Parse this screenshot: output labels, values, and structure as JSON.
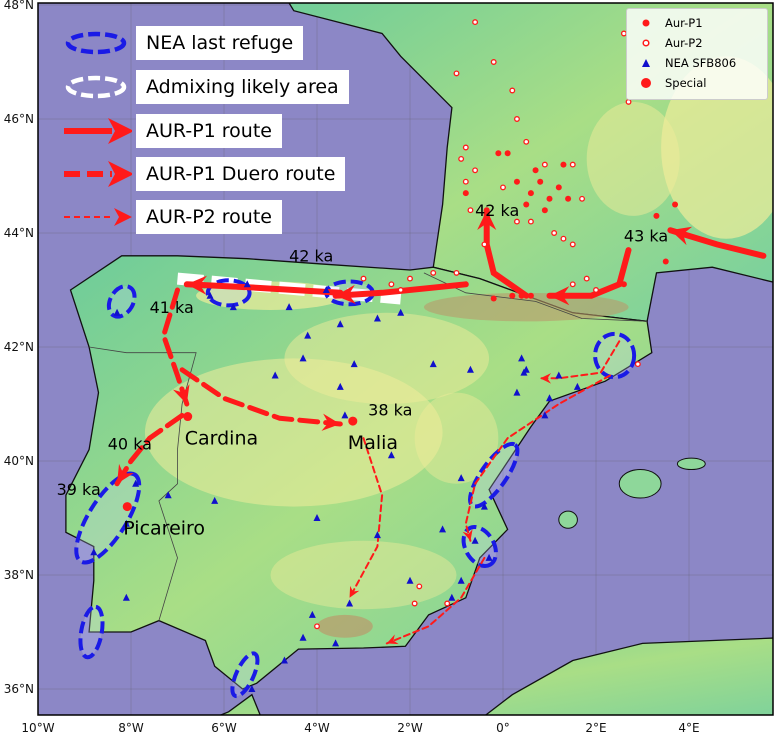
{
  "map": {
    "extent": {
      "lon": [
        -10,
        5.7
      ],
      "lat": [
        35.55,
        48
      ]
    },
    "colors": {
      "sea": "#8c87c6",
      "land_low": "#5cc4a0",
      "land_mid": "#a6dd84",
      "land_high": "#f0ec9a",
      "mountain": "#b99a6b",
      "route": "#ff1a1a",
      "refuge": "#1a1ae6",
      "nea": "#1010cc"
    },
    "x_ticks": [
      "10°W",
      "8°W",
      "6°W",
      "4°W",
      "2°W",
      "0°",
      "2°E",
      "4°E"
    ],
    "x_tick_values": [
      -10,
      -8,
      -6,
      -4,
      -2,
      0,
      2,
      4
    ],
    "y_ticks": [
      "48°N",
      "46°N",
      "44°N",
      "42°N",
      "40°N",
      "38°N",
      "36°N"
    ],
    "y_tick_values": [
      48,
      46,
      44,
      42,
      40,
      38,
      36
    ]
  },
  "route_legend": [
    {
      "label": "NEA last refuge",
      "symbol": "blue-dashed-ellipse"
    },
    {
      "label": "Admixing likely area",
      "symbol": "white-dashed-ellipse"
    },
    {
      "label": "AUR-P1 route",
      "symbol": "solid-red-arrow"
    },
    {
      "label": "AUR-P1 Duero route",
      "symbol": "dashed-thick-red-arrow"
    },
    {
      "label": "AUR-P2 route",
      "symbol": "dashed-thin-red-arrow"
    }
  ],
  "point_legend": [
    {
      "label": "Aur-P1",
      "symbol": "red-dot"
    },
    {
      "label": "Aur-P2",
      "symbol": "red-hollow-circle"
    },
    {
      "label": "NEA SFB806",
      "symbol": "blue-triangle"
    },
    {
      "label": "Special",
      "symbol": "large-red-dot"
    }
  ],
  "places": [
    {
      "name": "Cardina",
      "lon": -6.78,
      "lat": 40.78
    },
    {
      "name": "Malia",
      "lon": -3.23,
      "lat": 40.7
    },
    {
      "name": "Picareiro",
      "lon": -8.08,
      "lat": 39.2
    }
  ],
  "ages": [
    {
      "label": "42 ka",
      "lon": -0.6,
      "lat": 44.3
    },
    {
      "label": "43 ka",
      "lon": 2.6,
      "lat": 43.85
    },
    {
      "label": "42 ka",
      "lon": -4.6,
      "lat": 43.5
    },
    {
      "label": "41 ka",
      "lon": -7.6,
      "lat": 42.6
    },
    {
      "label": "38 ka",
      "lon": -2.9,
      "lat": 40.8
    },
    {
      "label": "40 ka",
      "lon": -8.5,
      "lat": 40.2
    },
    {
      "label": "39 ka",
      "lon": -9.6,
      "lat": 39.4
    }
  ],
  "aur_p1": [
    [
      0.8,
      44.9
    ],
    [
      0.6,
      44.7
    ],
    [
      1.0,
      44.6
    ],
    [
      0.9,
      44.4
    ],
    [
      0.5,
      44.5
    ],
    [
      1.2,
      44.8
    ],
    [
      0.3,
      44.9
    ],
    [
      0.1,
      45.4
    ],
    [
      -0.1,
      45.4
    ],
    [
      1.3,
      45.2
    ],
    [
      0.7,
      45.1
    ],
    [
      1.4,
      44.6
    ],
    [
      -0.8,
      44.7
    ],
    [
      0.4,
      42.9
    ],
    [
      0.6,
      42.9
    ],
    [
      0.2,
      42.9
    ],
    [
      -0.2,
      42.85
    ],
    [
      3.3,
      44.3
    ],
    [
      3.7,
      44.5
    ],
    [
      3.5,
      43.5
    ],
    [
      2.6,
      43.1
    ]
  ],
  "aur_p2": [
    [
      -0.8,
      45.5
    ],
    [
      -0.9,
      45.3
    ],
    [
      -0.6,
      45.1
    ],
    [
      -0.8,
      44.9
    ],
    [
      -0.7,
      44.4
    ],
    [
      0.0,
      44.8
    ],
    [
      0.3,
      44.2
    ],
    [
      0.6,
      44.2
    ],
    [
      1.1,
      44.0
    ],
    [
      1.3,
      43.9
    ],
    [
      1.5,
      43.8
    ],
    [
      0.5,
      45.6
    ],
    [
      0.3,
      46.0
    ],
    [
      0.2,
      46.5
    ],
    [
      1.7,
      44.6
    ],
    [
      0.9,
      45.2
    ],
    [
      1.5,
      45.2
    ],
    [
      -0.6,
      47.7
    ],
    [
      2.6,
      47.5
    ],
    [
      2.7,
      46.3
    ],
    [
      -0.4,
      43.8
    ],
    [
      -1.5,
      43.3
    ],
    [
      -2.0,
      43.2
    ],
    [
      -2.4,
      43.1
    ],
    [
      -3.0,
      43.2
    ],
    [
      -1.0,
      43.3
    ],
    [
      1.5,
      43.1
    ],
    [
      1.8,
      43.2
    ],
    [
      2.0,
      43.0
    ],
    [
      -0.2,
      47.0
    ],
    [
      -1.0,
      46.8
    ],
    [
      2.9,
      41.7
    ],
    [
      -2.2,
      43.0
    ],
    [
      -1.8,
      37.8
    ],
    [
      -4.0,
      37.1
    ],
    [
      -1.2,
      37.5
    ],
    [
      -1.9,
      37.5
    ]
  ],
  "nea": [
    [
      -8.3,
      42.6
    ],
    [
      -6.3,
      42.9
    ],
    [
      -5.8,
      42.7
    ],
    [
      -5.5,
      43.1
    ],
    [
      -4.6,
      42.7
    ],
    [
      -3.8,
      43.0
    ],
    [
      -3.5,
      42.4
    ],
    [
      -3.2,
      41.7
    ],
    [
      -4.2,
      42.2
    ],
    [
      -2.7,
      42.5
    ],
    [
      -2.2,
      42.6
    ],
    [
      -4.9,
      41.5
    ],
    [
      -4.3,
      41.8
    ],
    [
      -3.5,
      41.3
    ],
    [
      -3.4,
      40.8
    ],
    [
      -1.5,
      41.7
    ],
    [
      -0.7,
      41.6
    ],
    [
      0.4,
      41.8
    ],
    [
      0.5,
      41.6
    ],
    [
      0.45,
      41.55
    ],
    [
      0.3,
      41.2
    ],
    [
      1.2,
      41.5
    ],
    [
      1.0,
      41.1
    ],
    [
      -0.9,
      39.7
    ],
    [
      -0.4,
      39.2
    ],
    [
      -1.3,
      38.8
    ],
    [
      -2.7,
      38.7
    ],
    [
      -0.3,
      38.3
    ],
    [
      -0.6,
      38.6
    ],
    [
      -0.9,
      37.9
    ],
    [
      -1.1,
      37.6
    ],
    [
      -2.0,
      37.9
    ],
    [
      -3.3,
      37.5
    ],
    [
      -4.1,
      37.3
    ],
    [
      -3.6,
      36.8
    ],
    [
      -4.3,
      36.9
    ],
    [
      -4.7,
      36.5
    ],
    [
      -5.4,
      36.0
    ],
    [
      -6.2,
      39.3
    ],
    [
      -7.2,
      39.4
    ],
    [
      -7.9,
      39.6
    ],
    [
      -8.1,
      38.9
    ],
    [
      -8.8,
      38.4
    ],
    [
      -8.1,
      37.6
    ],
    [
      -4.0,
      39.0
    ],
    [
      -2.4,
      40.1
    ],
    [
      0.9,
      40.8
    ],
    [
      1.6,
      41.3
    ]
  ]
}
